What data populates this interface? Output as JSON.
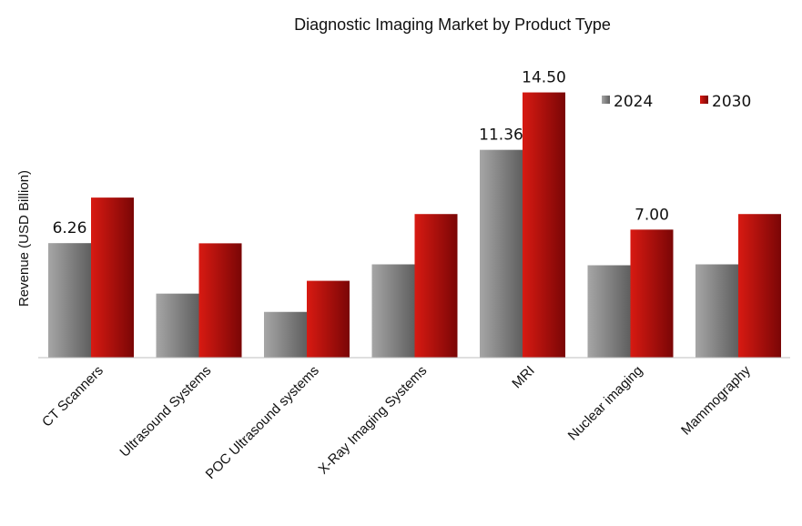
{
  "chart_data": {
    "type": "bar",
    "title": "Diagnostic Imaging Market by Product Type",
    "xlabel": "",
    "ylabel": "Revenue (USD Billion)",
    "ylim": [
      0,
      16
    ],
    "grid": false,
    "legend_position": "top-right",
    "categories": [
      "CT Scanners",
      "Ultrasound Systems",
      "POC Ultrasound systems",
      "X-Ray Imaging Systems",
      "MRI",
      "Nuclear imaging",
      "Mammography"
    ],
    "series": [
      {
        "name": "2024",
        "color": "#8c8c8c",
        "values": [
          6.26,
          3.5,
          2.5,
          5.1,
          11.36,
          5.05,
          5.1
        ]
      },
      {
        "name": "2030",
        "color": "#b50f0f",
        "values": [
          8.75,
          6.25,
          4.2,
          7.85,
          14.5,
          7.0,
          7.85
        ]
      }
    ],
    "data_labels": [
      {
        "series": 0,
        "index": 0,
        "text": "6.26"
      },
      {
        "series": 0,
        "index": 4,
        "text": "11.36"
      },
      {
        "series": 1,
        "index": 4,
        "text": "14.50"
      },
      {
        "series": 1,
        "index": 5,
        "text": "7.00"
      }
    ]
  }
}
